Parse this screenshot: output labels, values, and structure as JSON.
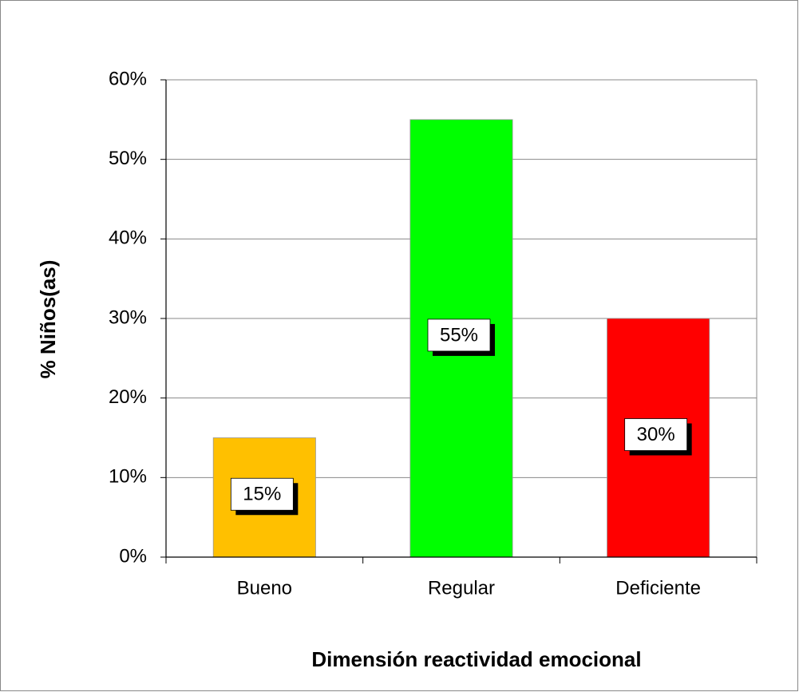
{
  "chart_data": {
    "type": "bar",
    "categories": [
      "Bueno",
      "Regular",
      "Deficiente"
    ],
    "values": [
      15,
      55,
      30
    ],
    "value_labels": [
      "15%",
      "55%",
      "30%"
    ],
    "colors": [
      "#ffc000",
      "#00ff00",
      "#ff0000"
    ],
    "ylim": [
      0,
      60
    ],
    "yticks": [
      {
        "value": 0,
        "label": "0%"
      },
      {
        "value": 10,
        "label": "10%"
      },
      {
        "value": 20,
        "label": "20%"
      },
      {
        "value": 30,
        "label": "30%"
      },
      {
        "value": 40,
        "label": "40%"
      },
      {
        "value": 50,
        "label": "50%"
      },
      {
        "value": 60,
        "label": "60%"
      }
    ],
    "y_label": "% Niños(as)",
    "x_label": "Dimensión reactividad emocional",
    "grid": true
  }
}
